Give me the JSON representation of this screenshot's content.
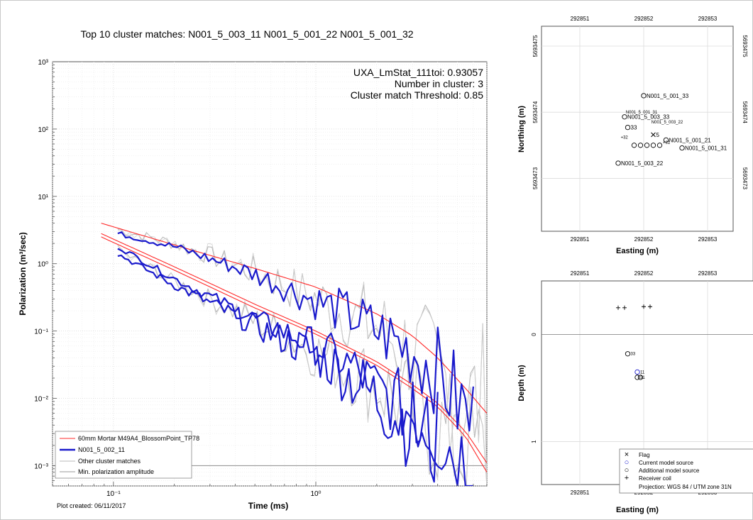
{
  "main": {
    "title": "Top 10 cluster matches:  N001_5_003_11  N001_5_001_22  N001_5_001_32",
    "ylabel": "Polarization (m³/sec)",
    "xlabel": "Time (ms)",
    "plot_created": "Plot created: 06/11/2017",
    "stats": [
      "UXA_LmStat_111toi: 0.93057",
      "Number in cluster: 3",
      "Cluster match Threshold: 0.85"
    ],
    "legend": [
      {
        "label": "60mm Mortar M49A4_BlossomPoint_TP78",
        "color": "#ff2a2a",
        "width": 1
      },
      {
        "label": "N001_5_002_11",
        "color": "#1a1acc",
        "width": 2.4
      },
      {
        "label": "Other cluster matches",
        "color": "#b8b8b8",
        "width": 1
      },
      {
        "label": "Min. polarization amplitude",
        "color": "#9a9a9a",
        "width": 1
      }
    ],
    "x_ticks": [
      {
        "v": 0.1,
        "l": "10⁻¹"
      },
      {
        "v": 1,
        "l": "10⁰"
      }
    ],
    "y_ticks": [
      {
        "v": 1000,
        "l": "10³"
      },
      {
        "v": 100,
        "l": "10²"
      },
      {
        "v": 10,
        "l": "10¹"
      },
      {
        "v": 1,
        "l": "10⁰"
      },
      {
        "v": 0.1,
        "l": "10⁻¹"
      },
      {
        "v": 0.01,
        "l": "10⁻²"
      },
      {
        "v": 0.001,
        "l": "10⁻³"
      }
    ]
  },
  "map": {
    "xlabel": "Easting (m)",
    "ylabel": "Northing (m)",
    "x_ticks": [
      "292851",
      "292852",
      "292853"
    ],
    "y_ticks": [
      "5693475",
      "5693474",
      "5693473"
    ],
    "labels": [
      "N001_5_001_33",
      "N001_5_003_33",
      "33",
      "N001_5_001_21",
      "N001_5_001_31",
      "N001_5_003_22",
      "+32",
      "+32",
      "+32",
      "+31",
      "5"
    ]
  },
  "depth": {
    "xlabel": "Easting (m)",
    "ylabel": "Depth (m)",
    "x_ticks": [
      "292851",
      "292852",
      "292853"
    ],
    "y_ticks": [
      "0",
      "1"
    ],
    "labels": [
      "33",
      "11",
      "31"
    ],
    "legend": [
      {
        "symbol": "×",
        "label": "Flag",
        "color": "#000000"
      },
      {
        "symbol": "○",
        "label": "Current model source",
        "color": "#1a1acc"
      },
      {
        "symbol": "○",
        "label": "Additional model source",
        "color": "#000000"
      },
      {
        "symbol": "+",
        "label": "Receiver coil",
        "color": "#000000"
      }
    ],
    "projection": "Projection: WGS 84 / UTM zone 31N"
  },
  "chart_data": [
    {
      "type": "line",
      "title": "Top 10 cluster matches:  N001_5_003_11  N001_5_001_22  N001_5_001_32",
      "xlabel": "Time (ms)",
      "ylabel": "Polarization (m³/sec)",
      "xscale": "log",
      "yscale": "log",
      "xlim": [
        0.05,
        7.0
      ],
      "ylim": [
        0.0005,
        1000
      ],
      "grid": true,
      "legend_position": "bottom-left",
      "series": [
        {
          "name": "60mm Mortar M49A4_BlossomPoint_TP78",
          "color": "#ff2a2a",
          "style": "smooth",
          "x": [
            0.087,
            0.2,
            0.5,
            1.0,
            2.0,
            3.0,
            4.0,
            5.5,
            7.0
          ],
          "y": [
            4.0,
            1.9,
            0.85,
            0.45,
            0.18,
            0.085,
            0.04,
            0.014,
            0.006
          ]
        },
        {
          "name": "60mm Mortar M49A4_BlossomPoint_TP78",
          "color": "#ff2a2a",
          "style": "smooth",
          "x": [
            0.087,
            0.2,
            0.5,
            1.0,
            2.0,
            3.0,
            4.0,
            5.5,
            7.0
          ],
          "y": [
            2.8,
            0.9,
            0.25,
            0.1,
            0.035,
            0.016,
            0.0085,
            0.0032,
            0.0011
          ]
        },
        {
          "name": "60mm Mortar M49A4_BlossomPoint_TP78",
          "color": "#ff2a2a",
          "style": "smooth",
          "x": [
            0.087,
            0.2,
            0.5,
            1.0,
            2.0,
            3.0,
            4.0,
            5.5,
            7.0
          ],
          "y": [
            2.5,
            0.8,
            0.22,
            0.09,
            0.031,
            0.014,
            0.0075,
            0.0027,
            0.0008
          ]
        },
        {
          "name": "N001_5_002_11",
          "color": "#1a1acc",
          "style": "jagged",
          "x": [
            0.105,
            0.2,
            0.5,
            1.0,
            1.5,
            2.0,
            3.0,
            4.0,
            5.0,
            6.0
          ],
          "y": [
            2.8,
            1.8,
            0.7,
            0.28,
            0.17,
            0.1,
            0.05,
            0.025,
            0.009,
            0.004
          ]
        },
        {
          "name": "N001_5_002_11",
          "color": "#1a1acc",
          "style": "jagged",
          "x": [
            0.105,
            0.2,
            0.5,
            1.0,
            1.5,
            2.0,
            3.0,
            4.0,
            5.0,
            6.0
          ],
          "y": [
            1.8,
            0.6,
            0.15,
            0.06,
            0.03,
            0.014,
            0.006,
            0.003,
            0.0015,
            0.001
          ]
        },
        {
          "name": "N001_5_002_11",
          "color": "#1a1acc",
          "style": "jagged",
          "x": [
            0.105,
            0.2,
            0.5,
            1.0,
            1.5,
            2.0,
            3.0,
            4.0
          ],
          "y": [
            1.4,
            0.48,
            0.12,
            0.045,
            0.02,
            0.01,
            0.004,
            0.002
          ]
        },
        {
          "name": "Other cluster matches",
          "color": "#b8b8b8",
          "style": "noisy",
          "x": [
            0.105,
            0.2,
            0.5,
            1.0,
            2.0,
            3.0,
            4.0,
            5.0,
            6.0,
            7.0
          ],
          "y": [
            3.2,
            2.0,
            0.75,
            0.3,
            0.11,
            0.05,
            0.024,
            0.012,
            0.008,
            0.01
          ]
        },
        {
          "name": "Other cluster matches",
          "color": "#b8b8b8",
          "style": "noisy",
          "x": [
            0.105,
            0.2,
            0.5,
            1.0,
            2.0,
            3.0,
            4.0,
            5.0,
            6.0,
            7.0
          ],
          "y": [
            1.6,
            0.55,
            0.14,
            0.05,
            0.016,
            0.007,
            0.0035,
            0.002,
            0.0014,
            0.0011
          ]
        },
        {
          "name": "Min. polarization amplitude",
          "color": "#9a9a9a",
          "style": "flat",
          "x": [
            0.05,
            7.0
          ],
          "y": [
            0.001,
            0.001
          ]
        }
      ]
    },
    {
      "type": "scatter",
      "xlabel": "Easting (m)",
      "ylabel": "Northing (m)",
      "xlim": [
        292850.4,
        292853.4
      ],
      "ylim": [
        5693472.2,
        5693475.3
      ],
      "grid": true,
      "points": [
        {
          "x": 292852.0,
          "y": 5693474.25,
          "symbol": "o",
          "label": "N001_5_001_33"
        },
        {
          "x": 292851.7,
          "y": 5693473.93,
          "symbol": "o",
          "label": "N001_5_003_33"
        },
        {
          "x": 292851.75,
          "y": 5693473.77,
          "symbol": "o",
          "label": "33"
        },
        {
          "x": 292852.35,
          "y": 5693473.58,
          "symbol": "o",
          "label": "N001_5_001_21"
        },
        {
          "x": 292852.6,
          "y": 5693473.46,
          "symbol": "o",
          "label": "N001_5_001_31"
        },
        {
          "x": 292851.6,
          "y": 5693473.23,
          "symbol": "o",
          "label": "N001_5_003_22"
        },
        {
          "x": 292851.85,
          "y": 5693473.5,
          "symbol": "o",
          "label": ""
        },
        {
          "x": 292851.95,
          "y": 5693473.5,
          "symbol": "o",
          "label": ""
        },
        {
          "x": 292852.05,
          "y": 5693473.5,
          "symbol": "o",
          "label": ""
        },
        {
          "x": 292852.15,
          "y": 5693473.5,
          "symbol": "o",
          "label": ""
        },
        {
          "x": 292852.25,
          "y": 5693473.5,
          "symbol": "o",
          "label": ""
        },
        {
          "x": 292852.15,
          "y": 5693473.66,
          "symbol": "x",
          "label": "5"
        }
      ]
    },
    {
      "type": "scatter",
      "xlabel": "Easting (m)",
      "ylabel": "Depth (m)",
      "xlim": [
        292850.4,
        292853.4
      ],
      "ylim": [
        1.4,
        -0.5
      ],
      "grid": true,
      "points": [
        {
          "x": 292851.6,
          "y": -0.25,
          "symbol": "+",
          "label": ""
        },
        {
          "x": 292851.7,
          "y": -0.25,
          "symbol": "+",
          "label": ""
        },
        {
          "x": 292852.0,
          "y": -0.26,
          "symbol": "+",
          "label": ""
        },
        {
          "x": 292852.1,
          "y": -0.26,
          "symbol": "+",
          "label": ""
        },
        {
          "x": 292851.75,
          "y": 0.18,
          "symbol": "o",
          "label": "33"
        },
        {
          "x": 292851.9,
          "y": 0.35,
          "symbol": "o-blue",
          "label": "11"
        },
        {
          "x": 292851.9,
          "y": 0.4,
          "symbol": "o",
          "label": "31"
        },
        {
          "x": 292851.95,
          "y": 0.4,
          "symbol": "o",
          "label": ""
        }
      ]
    }
  ]
}
